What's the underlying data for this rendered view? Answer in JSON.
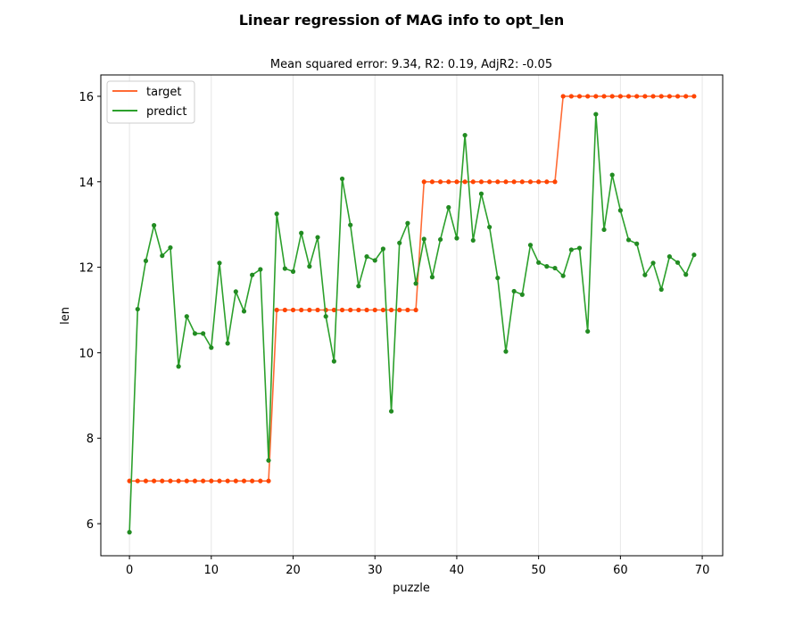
{
  "chart_data": {
    "type": "line",
    "title": "Linear regression of MAG info to opt_len",
    "subtitle": "Mean squared error: 9.34, R2: 0.19, AdjR2: -0.05",
    "xlabel": "puzzle",
    "ylabel": "len",
    "xlim": [
      -3.5,
      72.5
    ],
    "ylim": [
      5.25,
      16.5
    ],
    "xticks": [
      0,
      10,
      20,
      30,
      40,
      50,
      60,
      70
    ],
    "yticks": [
      6,
      8,
      10,
      12,
      14,
      16
    ],
    "xgrid": true,
    "legend_position": "upper-left",
    "series": [
      {
        "name": "target",
        "color": "#ff6b35",
        "marker_color": "#ff4500",
        "values": [
          7,
          7,
          7,
          7,
          7,
          7,
          7,
          7,
          7,
          7,
          7,
          7,
          7,
          7,
          7,
          7,
          7,
          7,
          11,
          11,
          11,
          11,
          11,
          11,
          11,
          11,
          11,
          11,
          11,
          11,
          11,
          11,
          11,
          11,
          11,
          11,
          14,
          14,
          14,
          14,
          14,
          14,
          14,
          14,
          14,
          14,
          14,
          14,
          14,
          14,
          14,
          14,
          14,
          16,
          16,
          16,
          16,
          16,
          16,
          16,
          16,
          16,
          16,
          16,
          16,
          16,
          16,
          16,
          16,
          16
        ]
      },
      {
        "name": "predict",
        "color": "#2ca02c",
        "marker_color": "#228b22",
        "values": [
          5.8,
          11.02,
          12.15,
          12.98,
          12.27,
          12.46,
          9.68,
          10.85,
          10.45,
          10.45,
          10.12,
          12.1,
          10.22,
          11.43,
          10.97,
          11.82,
          11.95,
          7.48,
          13.25,
          11.97,
          11.9,
          12.8,
          12.02,
          12.7,
          10.85,
          9.8,
          14.07,
          12.99,
          11.56,
          12.25,
          12.16,
          12.43,
          8.63,
          12.57,
          13.03,
          11.62,
          12.66,
          11.77,
          12.65,
          13.4,
          12.68,
          15.09,
          12.63,
          13.72,
          12.94,
          11.75,
          10.03,
          11.44,
          11.36,
          12.52,
          12.11,
          12.02,
          11.98,
          11.8,
          12.41,
          12.45,
          10.5,
          15.58,
          12.88,
          14.16,
          13.33,
          12.64,
          12.55,
          11.82,
          12.1,
          11.48,
          12.25,
          12.11,
          11.83,
          12.29
        ]
      }
    ]
  }
}
